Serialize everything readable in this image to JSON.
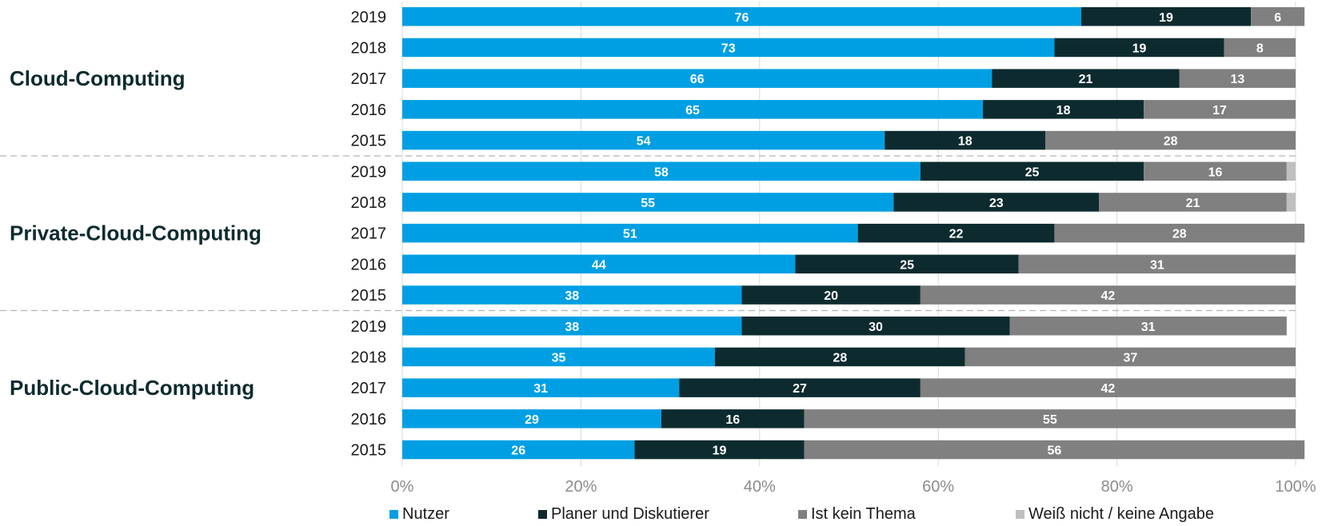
{
  "chart_data": {
    "type": "bar",
    "orientation": "horizontal",
    "stacked": true,
    "title": "",
    "xlabel": "",
    "ylabel": "",
    "xlim": [
      0,
      100
    ],
    "x_ticks": [
      "0%",
      "20%",
      "40%",
      "60%",
      "80%",
      "100%"
    ],
    "legend_position": "bottom",
    "series": [
      {
        "name": "Nutzer",
        "color": "#009fe3"
      },
      {
        "name": "Planer und Diskutierer",
        "color": "#0d2b2f"
      },
      {
        "name": "Ist kein Thema",
        "color": "#808080"
      },
      {
        "name": "Weiß nicht / keine Angabe",
        "color": "#bfbfbf"
      }
    ],
    "groups": [
      {
        "name": "Cloud-Computing",
        "rows": [
          {
            "year": "2019",
            "values": [
              76,
              19,
              6,
              0
            ],
            "labels": [
              "76",
              "19",
              "6",
              ""
            ]
          },
          {
            "year": "2018",
            "values": [
              73,
              19,
              8,
              0
            ],
            "labels": [
              "73",
              "19",
              "8",
              ""
            ]
          },
          {
            "year": "2017",
            "values": [
              66,
              21,
              13,
              0
            ],
            "labels": [
              "66",
              "21",
              "13",
              ""
            ]
          },
          {
            "year": "2016",
            "values": [
              65,
              18,
              17,
              0
            ],
            "labels": [
              "65",
              "18",
              "17",
              ""
            ]
          },
          {
            "year": "2015",
            "values": [
              54,
              18,
              28,
              0
            ],
            "labels": [
              "54",
              "18",
              "28",
              ""
            ]
          }
        ]
      },
      {
        "name": "Private-Cloud-Computing",
        "rows": [
          {
            "year": "2019",
            "values": [
              58,
              25,
              16,
              1
            ],
            "labels": [
              "58",
              "25",
              "16",
              ""
            ]
          },
          {
            "year": "2018",
            "values": [
              55,
              23,
              21,
              1
            ],
            "labels": [
              "55",
              "23",
              "21",
              ""
            ]
          },
          {
            "year": "2017",
            "values": [
              51,
              22,
              28,
              0
            ],
            "labels": [
              "51",
              "22",
              "28",
              ""
            ]
          },
          {
            "year": "2016",
            "values": [
              44,
              25,
              31,
              0
            ],
            "labels": [
              "44",
              "25",
              "31",
              ""
            ]
          },
          {
            "year": "2015",
            "values": [
              38,
              20,
              42,
              0
            ],
            "labels": [
              "38",
              "20",
              "42",
              ""
            ]
          }
        ]
      },
      {
        "name": "Public-Cloud-Computing",
        "rows": [
          {
            "year": "2019",
            "values": [
              38,
              30,
              31,
              0
            ],
            "labels": [
              "38",
              "30",
              "31",
              ""
            ]
          },
          {
            "year": "2018",
            "values": [
              35,
              28,
              37,
              0
            ],
            "labels": [
              "35",
              "28",
              "37",
              ""
            ]
          },
          {
            "year": "2017",
            "values": [
              31,
              27,
              42,
              0
            ],
            "labels": [
              "31",
              "27",
              "42",
              ""
            ]
          },
          {
            "year": "2016",
            "values": [
              29,
              16,
              55,
              0
            ],
            "labels": [
              "29",
              "16",
              "55",
              ""
            ]
          },
          {
            "year": "2015",
            "values": [
              26,
              19,
              56,
              0
            ],
            "labels": [
              "26",
              "19",
              "56",
              ""
            ]
          }
        ]
      }
    ]
  }
}
